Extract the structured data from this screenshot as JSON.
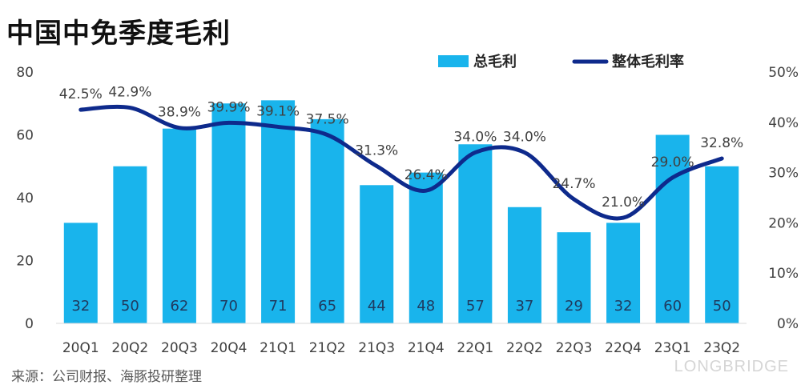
{
  "title": "中国中免季度毛利",
  "source": "来源：公司财报、海豚投研整理",
  "watermark": "LONGBRIDGE",
  "colors": {
    "bar": "#19b4ec",
    "line": "#0e2a8c",
    "text": "#404040",
    "grid": "#d9d9d9"
  },
  "chart_data": {
    "type": "bar",
    "categories": [
      "20Q1",
      "20Q2",
      "20Q3",
      "20Q4",
      "21Q1",
      "21Q2",
      "21Q3",
      "21Q4",
      "22Q1",
      "22Q2",
      "22Q3",
      "22Q4",
      "23Q1",
      "23Q2"
    ],
    "series": [
      {
        "name": "总毛利",
        "type": "bar",
        "axis": "left",
        "values": [
          32,
          50,
          62,
          70,
          71,
          65,
          44,
          48,
          57,
          37,
          29,
          32,
          60,
          50
        ],
        "labels": [
          "32",
          "50",
          "62",
          "70",
          "71",
          "65",
          "44",
          "48",
          "57",
          "37",
          "29",
          "32",
          "60",
          "50"
        ]
      },
      {
        "name": "整体毛利率",
        "type": "line",
        "axis": "right",
        "values": [
          42.5,
          42.9,
          38.9,
          39.9,
          39.1,
          37.5,
          31.3,
          26.4,
          34.0,
          34.0,
          24.7,
          21.0,
          29.0,
          32.8
        ],
        "labels": [
          "42.5%",
          "42.9%",
          "38.9%",
          "39.9%",
          "39.1%",
          "37.5%",
          "31.3%",
          "26.4%",
          "34.0%",
          "34.0%",
          "24.7%",
          "21.0%",
          "29.0%",
          "32.8%"
        ]
      }
    ],
    "y_left": {
      "min": 0,
      "max": 80,
      "ticks": [
        "0",
        "20",
        "40",
        "60",
        "80"
      ]
    },
    "y_right": {
      "min": 0,
      "max": 50,
      "ticks": [
        "0%",
        "10%",
        "20%",
        "30%",
        "40%",
        "50%"
      ]
    },
    "legend": "top-center",
    "grid": false
  }
}
